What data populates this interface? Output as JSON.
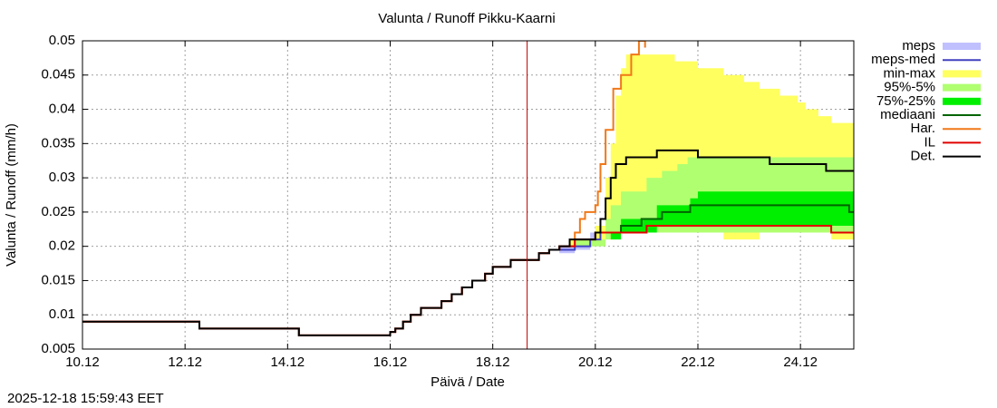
{
  "chart_data": {
    "type": "line",
    "title": "Valunta / Runoff  Pikku-Kaarni",
    "xlabel": "Päivä / Date",
    "ylabel": "Valunta / Runoff (mm/h)",
    "timestamp": "2025-12-18 15:59:43 EET",
    "xlim": [
      0,
      15.04
    ],
    "ylim": [
      0.005,
      0.05
    ],
    "xticks": [
      {
        "value": 0,
        "label": "10.12"
      },
      {
        "value": 2,
        "label": "12.12"
      },
      {
        "value": 4,
        "label": "14.12"
      },
      {
        "value": 6,
        "label": "16.12"
      },
      {
        "value": 8,
        "label": "18.12"
      },
      {
        "value": 10,
        "label": "20.12"
      },
      {
        "value": 12,
        "label": "22.12"
      },
      {
        "value": 14,
        "label": "24.12"
      }
    ],
    "yticks": [
      0.005,
      0.01,
      0.015,
      0.02,
      0.025,
      0.03,
      0.035,
      0.04,
      0.045,
      0.05
    ],
    "grid": true,
    "step": true,
    "now_x": 8.67,
    "now_color": "#c00000",
    "series": [
      {
        "name": "meps",
        "kind": "band",
        "color": "#c0c0ff",
        "x": [
          9.3,
          9.6,
          9.9,
          10.1
        ],
        "low": [
          0.019,
          0.0195,
          0.02,
          0.021
        ],
        "values": [
          0.02,
          0.021,
          0.022,
          0.022
        ]
      },
      {
        "name": "meps-med",
        "kind": "line",
        "color": "#4040c0",
        "x": [
          9.3,
          9.6,
          9.9,
          10.1
        ],
        "values": [
          0.0195,
          0.02,
          0.021,
          0.022
        ]
      },
      {
        "name": "min-max",
        "kind": "band",
        "color": "#ffff60",
        "x": [
          9.2,
          9.5,
          10.0,
          10.2,
          10.3,
          10.4,
          10.5,
          10.6,
          11.55,
          12.0,
          12.5,
          12.9,
          13.2,
          13.6,
          13.95,
          14.1,
          14.35,
          14.6,
          15.04
        ],
        "low": [
          0.019,
          0.02,
          0.021,
          0.021,
          0.021,
          0.022,
          0.022,
          0.022,
          0.022,
          0.022,
          0.021,
          0.021,
          0.022,
          0.022,
          0.022,
          0.022,
          0.022,
          0.021,
          0.021
        ],
        "values": [
          0.019,
          0.021,
          0.023,
          0.03,
          0.035,
          0.042,
          0.046,
          0.048,
          0.047,
          0.046,
          0.045,
          0.044,
          0.043,
          0.042,
          0.041,
          0.04,
          0.039,
          0.038,
          0.038
        ]
      },
      {
        "name": "95%-5%",
        "kind": "band",
        "color": "#b0ff70",
        "x": [
          9.3,
          9.6,
          10.2,
          10.3,
          10.5,
          11.0,
          11.3,
          11.6,
          11.8,
          15.04
        ],
        "low": [
          0.019,
          0.02,
          0.021,
          0.022,
          0.022,
          0.022,
          0.022,
          0.022,
          0.022,
          0.022
        ],
        "values": [
          0.019,
          0.021,
          0.024,
          0.026,
          0.028,
          0.03,
          0.031,
          0.032,
          0.033,
          0.033
        ]
      },
      {
        "name": "75%-25%",
        "kind": "band",
        "color": "#00ee00",
        "x": [
          10.3,
          10.5,
          11.2,
          11.85,
          12.0,
          15.04
        ],
        "low": [
          0.021,
          0.022,
          0.023,
          0.023,
          0.023,
          0.023
        ],
        "values": [
          0.022,
          0.024,
          0.026,
          0.027,
          0.028,
          0.028
        ]
      },
      {
        "name": "mediaani",
        "kind": "line",
        "color": "#006400",
        "x": [
          10.2,
          10.5,
          10.9,
          11.3,
          11.85,
          14.95,
          15.04
        ],
        "values": [
          0.022,
          0.023,
          0.024,
          0.025,
          0.026,
          0.025,
          0.025
        ]
      },
      {
        "name": "Har.",
        "kind": "line",
        "color": "#f07818",
        "x": [
          0,
          2.28,
          4.22,
          6.0,
          6.1,
          6.25,
          6.4,
          6.6,
          7.0,
          7.2,
          7.4,
          7.6,
          7.85,
          8.0,
          8.35,
          8.9,
          9.1,
          9.3,
          9.6,
          9.7,
          9.8,
          10.0,
          10.05,
          10.1,
          10.2,
          10.35,
          10.5,
          10.7,
          10.85,
          10.97
        ],
        "values": [
          0.009,
          0.008,
          0.007,
          0.0075,
          0.008,
          0.009,
          0.01,
          0.011,
          0.012,
          0.013,
          0.014,
          0.015,
          0.016,
          0.017,
          0.018,
          0.019,
          0.0195,
          0.02,
          0.022,
          0.024,
          0.025,
          0.026,
          0.028,
          0.032,
          0.037,
          0.043,
          0.045,
          0.048,
          0.05,
          0.049
        ]
      },
      {
        "name": "IL",
        "kind": "line",
        "color": "#e00000",
        "x": [
          0,
          2.28,
          4.22,
          6.0,
          6.1,
          6.25,
          6.4,
          6.6,
          7.0,
          7.2,
          7.4,
          7.6,
          7.85,
          8.0,
          8.35,
          8.9,
          9.1,
          9.3,
          9.6,
          10.0,
          11.0,
          14.6,
          15.04
        ],
        "values": [
          0.009,
          0.008,
          0.007,
          0.0075,
          0.008,
          0.009,
          0.01,
          0.011,
          0.012,
          0.013,
          0.014,
          0.015,
          0.016,
          0.017,
          0.018,
          0.019,
          0.0195,
          0.02,
          0.021,
          0.022,
          0.023,
          0.022,
          0.022
        ]
      },
      {
        "name": "Det.",
        "kind": "line",
        "color": "#000000",
        "x": [
          0,
          2.28,
          4.22,
          6.0,
          6.1,
          6.25,
          6.4,
          6.6,
          7.0,
          7.2,
          7.4,
          7.6,
          7.85,
          8.0,
          8.35,
          8.9,
          9.1,
          9.3,
          9.5,
          9.8,
          10.0,
          10.1,
          10.2,
          10.3,
          10.4,
          10.6,
          11.2,
          12.0,
          13.4,
          14.5,
          15.04
        ],
        "values": [
          0.009,
          0.008,
          0.007,
          0.0075,
          0.008,
          0.009,
          0.01,
          0.011,
          0.012,
          0.013,
          0.014,
          0.015,
          0.016,
          0.017,
          0.018,
          0.019,
          0.0195,
          0.02,
          0.021,
          0.021,
          0.022,
          0.024,
          0.027,
          0.03,
          0.032,
          0.033,
          0.034,
          0.033,
          0.032,
          0.031,
          0.031
        ]
      }
    ]
  }
}
